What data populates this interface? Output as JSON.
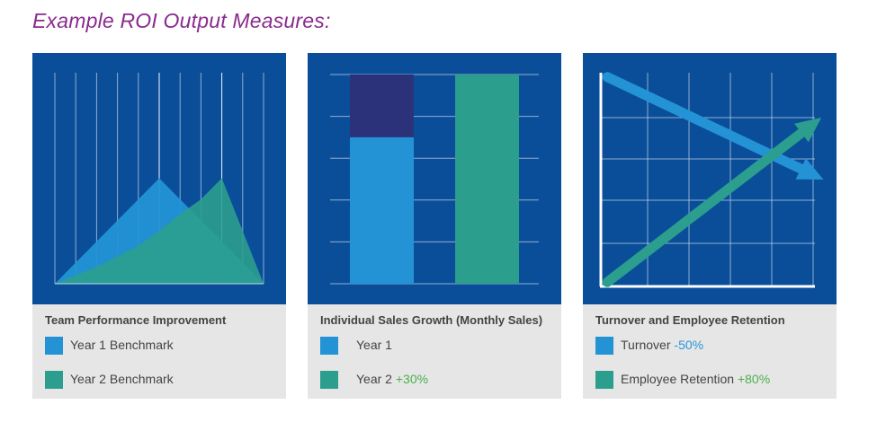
{
  "page": {
    "title": "Example ROI Output Measures:"
  },
  "colors": {
    "panel_bg": "#0a4e9a",
    "series_light": "#2393d5",
    "series_teal": "#2b9e8e",
    "series_navy": "#2c3279",
    "grid": "#c8d6ea",
    "up": "#4caf50",
    "down": "#2a96d8"
  },
  "chart_data": [
    {
      "type": "area",
      "title": "Team Performance Improvement",
      "x": [
        0,
        1,
        2,
        3,
        4,
        5,
        6,
        7,
        8,
        9,
        10
      ],
      "ylim": [
        0,
        10
      ],
      "series": [
        {
          "name": "Year 1 Benchmark",
          "values": [
            0,
            1,
            2,
            3,
            4,
            5,
            4,
            3,
            2,
            1,
            0
          ]
        },
        {
          "name": "Year 2 Benchmark",
          "values": [
            0,
            0.4,
            0.8,
            1.3,
            1.8,
            2.5,
            3.3,
            4.0,
            5.0,
            2.5,
            0
          ]
        }
      ]
    },
    {
      "type": "bar",
      "title": "Individual Sales Growth (Monthly Sales)",
      "categories": [
        "Year 1",
        "Year 2"
      ],
      "ylim": [
        0,
        100
      ],
      "series": [
        {
          "name": "Year 1",
          "values": [
            70,
            0
          ]
        },
        {
          "name": "Year 1 gap",
          "values": [
            30,
            0
          ]
        },
        {
          "name": "Year 2",
          "values": [
            0,
            100
          ]
        }
      ],
      "annotations": [
        {
          "target": "Year 2",
          "text": "+30%"
        }
      ]
    },
    {
      "type": "line",
      "title": "Turnover and Employee Retention",
      "x": [
        0,
        10
      ],
      "ylim": [
        0,
        10
      ],
      "series": [
        {
          "name": "Turnover",
          "values": [
            9.8,
            5.0
          ],
          "change": "-50%"
        },
        {
          "name": "Employee Retention",
          "values": [
            0.2,
            7.9
          ],
          "change": "+80%"
        }
      ]
    }
  ],
  "cards": [
    {
      "title": "Team Performance Improvement",
      "legend": [
        {
          "label": "Year 1 Benchmark",
          "change": ""
        },
        {
          "label": "Year 2 Benchmark",
          "change": ""
        }
      ]
    },
    {
      "title": "Individual Sales Growth (Monthly Sales)",
      "legend": [
        {
          "label": "Year 1",
          "change": ""
        },
        {
          "label": "Year 2",
          "change": "+30%"
        }
      ]
    },
    {
      "title": "Turnover and Employee Retention",
      "legend": [
        {
          "label": "Turnover",
          "change": "-50%"
        },
        {
          "label": "Employee Retention",
          "change": "+80%"
        }
      ]
    }
  ]
}
